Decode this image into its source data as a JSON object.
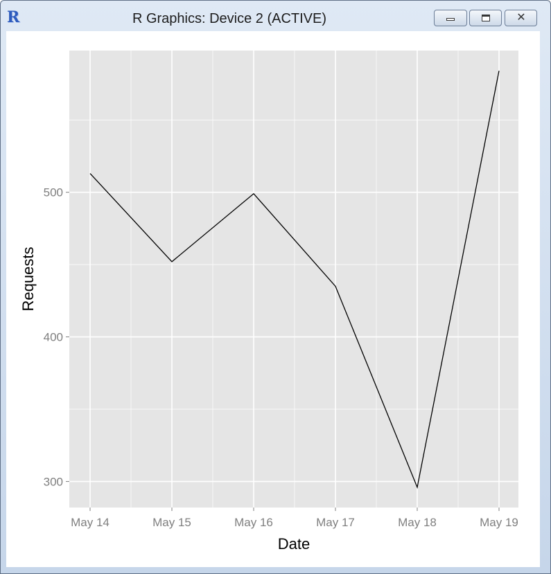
{
  "window": {
    "title": "R Graphics: Device 2 (ACTIVE)",
    "app_icon_letter": "R",
    "buttons": [
      "minimize-icon",
      "maximize-icon",
      "close-icon"
    ],
    "close_glyph": "✕"
  },
  "colors": {
    "panel_background": "#e5e5e5",
    "grid": "#ffffff",
    "line": "#000000",
    "tick_text": "#7f7f7f"
  },
  "chart_data": {
    "type": "line",
    "x": [
      "May 14",
      "May 15",
      "May 16",
      "May 17",
      "May 18",
      "May 19"
    ],
    "series": [
      {
        "values": [
          513,
          452,
          499,
          435,
          296,
          584
        ]
      }
    ],
    "xlabel": "Date",
    "ylabel": "Requests",
    "ylim": [
      282,
      598
    ],
    "yticks": [
      300,
      400,
      500
    ],
    "grid": true,
    "legend": "none"
  }
}
